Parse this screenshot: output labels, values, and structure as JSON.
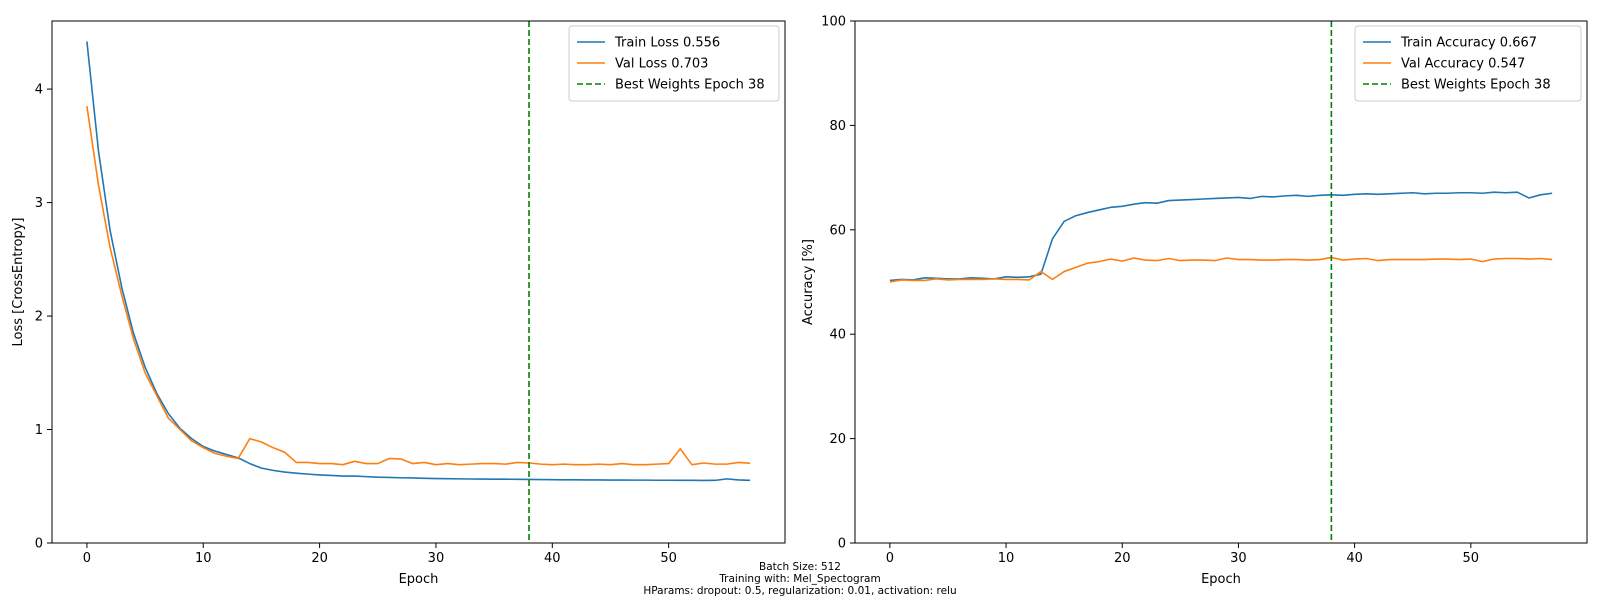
{
  "chart_data": [
    {
      "type": "line",
      "xlabel": "Epoch",
      "ylabel": "Loss [CrossEntropy]",
      "xlim": [
        -3,
        60
      ],
      "ylim": [
        0,
        4.6
      ],
      "xticks": [
        "0",
        "10",
        "20",
        "30",
        "40",
        "50"
      ],
      "yticks": [
        "0",
        "1",
        "2",
        "3",
        "4"
      ],
      "grid": false,
      "legend_position": "top-right",
      "vline": {
        "x": 38,
        "name": "Best Weights Epoch 38",
        "color": "#008000"
      },
      "series": [
        {
          "name": "Train Loss 0.556",
          "color": "#1f77b4",
          "values": [
            4.42,
            3.45,
            2.75,
            2.25,
            1.85,
            1.55,
            1.32,
            1.14,
            1.01,
            0.92,
            0.85,
            0.81,
            0.78,
            0.75,
            0.7,
            0.66,
            0.64,
            0.625,
            0.615,
            0.607,
            0.6,
            0.595,
            0.59,
            0.59,
            0.585,
            0.58,
            0.578,
            0.575,
            0.573,
            0.57,
            0.568,
            0.567,
            0.565,
            0.564,
            0.563,
            0.562,
            0.562,
            0.561,
            0.56,
            0.559,
            0.558,
            0.557,
            0.557,
            0.556,
            0.556,
            0.555,
            0.555,
            0.554,
            0.554,
            0.553,
            0.553,
            0.552,
            0.552,
            0.551,
            0.552,
            0.565,
            0.556,
            0.552
          ]
        },
        {
          "name": "Val Loss 0.703",
          "color": "#ff7f0e",
          "values": [
            3.85,
            3.15,
            2.6,
            2.18,
            1.8,
            1.5,
            1.3,
            1.1,
            1.0,
            0.9,
            0.84,
            0.79,
            0.765,
            0.745,
            0.92,
            0.89,
            0.84,
            0.8,
            0.71,
            0.71,
            0.7,
            0.7,
            0.69,
            0.72,
            0.7,
            0.7,
            0.745,
            0.74,
            0.7,
            0.71,
            0.69,
            0.7,
            0.69,
            0.695,
            0.7,
            0.7,
            0.695,
            0.71,
            0.705,
            0.695,
            0.69,
            0.695,
            0.69,
            0.69,
            0.695,
            0.69,
            0.7,
            0.69,
            0.69,
            0.695,
            0.7,
            0.83,
            0.69,
            0.705,
            0.695,
            0.695,
            0.71,
            0.703
          ]
        }
      ]
    },
    {
      "type": "line",
      "xlabel": "Epoch",
      "ylabel": "Accuracy [%]",
      "xlim": [
        -3,
        60
      ],
      "ylim": [
        0,
        100
      ],
      "xticks": [
        "0",
        "10",
        "20",
        "30",
        "40",
        "50"
      ],
      "yticks": [
        "0",
        "20",
        "40",
        "60",
        "80",
        "100"
      ],
      "grid": false,
      "legend_position": "top-right",
      "vline": {
        "x": 38,
        "name": "Best Weights Epoch 38",
        "color": "#008000"
      },
      "series": [
        {
          "name": "Train Accuracy 0.667",
          "color": "#1f77b4",
          "values": [
            50.3,
            50.5,
            50.4,
            50.8,
            50.7,
            50.6,
            50.6,
            50.8,
            50.7,
            50.6,
            51.0,
            50.9,
            51.0,
            51.5,
            58.3,
            61.6,
            62.7,
            63.3,
            63.8,
            64.3,
            64.5,
            64.9,
            65.2,
            65.1,
            65.6,
            65.7,
            65.8,
            65.9,
            66.0,
            66.1,
            66.2,
            66.0,
            66.4,
            66.3,
            66.5,
            66.6,
            66.4,
            66.6,
            66.7,
            66.6,
            66.8,
            66.9,
            66.8,
            66.9,
            67.0,
            67.1,
            66.9,
            67.0,
            67.0,
            67.1,
            67.1,
            67.0,
            67.2,
            67.1,
            67.2,
            66.1,
            66.7,
            67.0
          ]
        },
        {
          "name": "Val Accuracy 0.547",
          "color": "#ff7f0e",
          "values": [
            50.0,
            50.4,
            50.3,
            50.3,
            50.6,
            50.4,
            50.5,
            50.5,
            50.5,
            50.6,
            50.5,
            50.5,
            50.4,
            52.0,
            50.5,
            52.0,
            52.8,
            53.6,
            53.9,
            54.4,
            54.0,
            54.6,
            54.2,
            54.1,
            54.5,
            54.1,
            54.2,
            54.2,
            54.1,
            54.6,
            54.3,
            54.3,
            54.2,
            54.2,
            54.3,
            54.3,
            54.2,
            54.3,
            54.7,
            54.2,
            54.4,
            54.5,
            54.1,
            54.3,
            54.3,
            54.3,
            54.3,
            54.4,
            54.4,
            54.3,
            54.4,
            53.9,
            54.4,
            54.5,
            54.5,
            54.4,
            54.5,
            54.3
          ]
        }
      ]
    }
  ],
  "footer": {
    "line1": "Batch Size: 512",
    "line2": "Training with: Mel_Spectogram",
    "line3": "HParams: dropout: 0.5, regularization: 0.01, activation: relu"
  }
}
